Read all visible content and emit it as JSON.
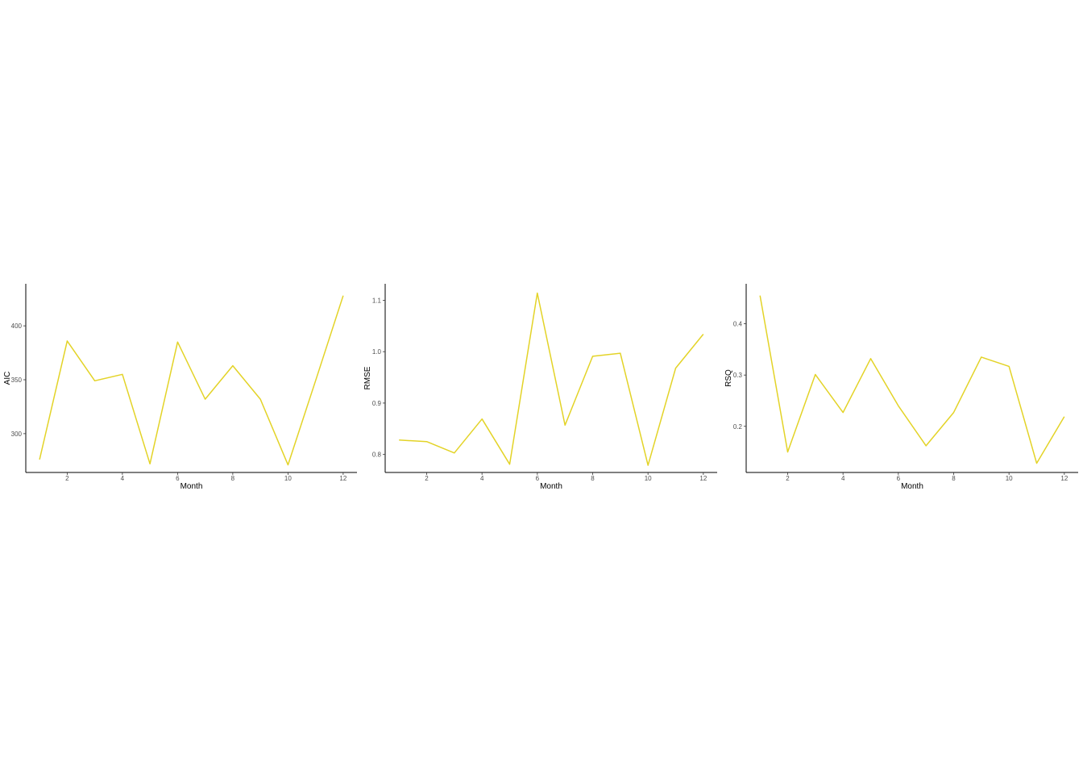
{
  "style": {
    "line_color": "#e3d327",
    "axis_color": "#000000",
    "tick_text_color": "#4d4d4d",
    "background": "#ffffff"
  },
  "chart_data": [
    {
      "type": "line",
      "xlabel": "Month",
      "ylabel": "AIC",
      "xlim": [
        0.5,
        12.5
      ],
      "ylim": [
        264,
        439
      ],
      "xticks": [
        2,
        4,
        6,
        8,
        10,
        12
      ],
      "yticks": [
        300,
        350,
        400
      ],
      "grid": false,
      "series": [
        {
          "x": [
            1,
            2,
            3,
            4,
            5,
            6,
            7,
            8,
            9,
            10,
            11,
            12
          ],
          "values": [
            276,
            386,
            349,
            355,
            272,
            385,
            332,
            363,
            332,
            271,
            349,
            428
          ]
        }
      ]
    },
    {
      "type": "line",
      "xlabel": "Month",
      "ylabel": "RMSE",
      "xlim": [
        0.5,
        12.5
      ],
      "ylim": [
        0.765,
        1.132
      ],
      "xticks": [
        2,
        4,
        6,
        8,
        10,
        12
      ],
      "yticks": [
        0.8,
        0.9,
        1.0,
        1.1
      ],
      "yticklabels": [
        "0.8",
        "0.9",
        "1.0",
        "1.1"
      ],
      "grid": false,
      "series": [
        {
          "x": [
            1,
            2,
            3,
            4,
            5,
            6,
            7,
            8,
            9,
            10,
            11,
            12
          ],
          "values": [
            0.828,
            0.825,
            0.803,
            0.869,
            0.781,
            1.114,
            0.857,
            0.991,
            0.997,
            0.779,
            0.968,
            1.034
          ]
        }
      ]
    },
    {
      "type": "line",
      "xlabel": "Month",
      "ylabel": "RSQ",
      "xlim": [
        0.5,
        12.5
      ],
      "ylim": [
        0.11,
        0.478
      ],
      "xticks": [
        2,
        4,
        6,
        8,
        10,
        12
      ],
      "yticks": [
        0.2,
        0.3,
        0.4
      ],
      "yticklabels": [
        "0.2",
        "0.3",
        "0.4"
      ],
      "grid": false,
      "series": [
        {
          "x": [
            1,
            2,
            3,
            4,
            5,
            6,
            7,
            8,
            9,
            10,
            11,
            12
          ],
          "values": [
            0.455,
            0.15,
            0.301,
            0.227,
            0.332,
            0.24,
            0.162,
            0.227,
            0.335,
            0.317,
            0.128,
            0.219
          ]
        }
      ]
    }
  ]
}
